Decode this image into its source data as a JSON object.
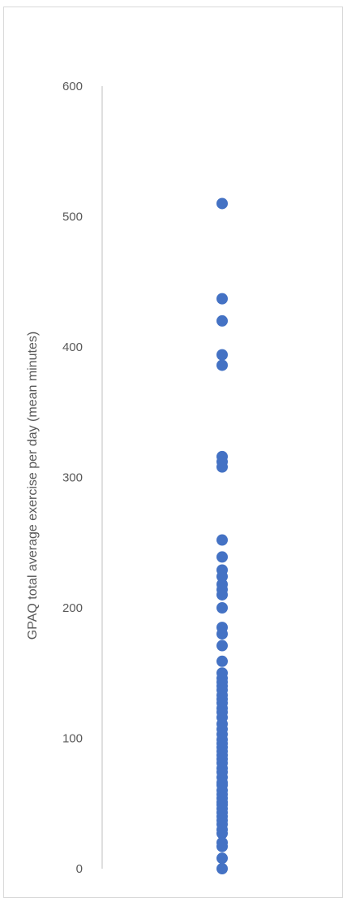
{
  "chart_data": {
    "type": "scatter",
    "title": "",
    "xlabel": "",
    "ylabel": "GPAQ total average exercise per day (mean minutes)",
    "ylim": [
      0,
      600
    ],
    "yticks": [
      0,
      100,
      200,
      300,
      400,
      500,
      600
    ],
    "grid": false,
    "legend": "none",
    "color": "#4472c4",
    "series": [
      {
        "values": [
          510,
          437,
          420,
          394,
          386,
          316,
          312,
          308,
          252,
          239,
          229,
          224,
          218,
          214,
          210,
          200,
          185,
          180,
          171,
          159,
          150,
          146,
          143,
          140,
          137,
          133,
          130,
          127,
          123,
          120,
          116,
          111,
          107,
          103,
          99,
          96,
          93,
          90,
          87,
          84,
          81,
          77,
          74,
          70,
          66,
          64,
          60,
          57,
          54,
          51,
          49,
          46,
          43,
          40,
          37,
          34,
          30,
          27,
          20,
          17,
          8,
          0
        ]
      }
    ]
  }
}
